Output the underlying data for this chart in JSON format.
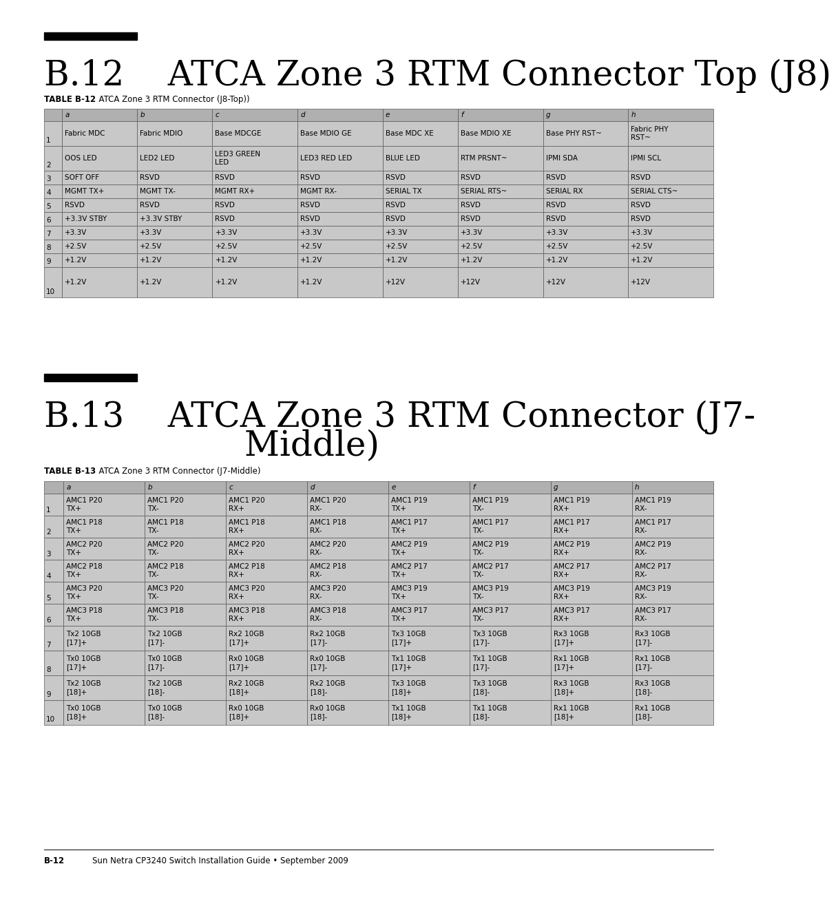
{
  "page_bg": "#ffffff",
  "title1": "B.12    ATCA Zone 3 RTM Connector Top (J8)",
  "table1_label": "TABLE B-12",
  "table1_caption": "  ATCA Zone 3 RTM Connector (J8-Top))",
  "table1_headers": [
    "",
    "a",
    "b",
    "c",
    "d",
    "e",
    "f",
    "g",
    "h"
  ],
  "table1_rows": [
    [
      "1",
      "Fabric MDC",
      "Fabric MDIO",
      "Base MDCGE",
      "Base MDIO GE",
      "Base MDC XE",
      "Base MDIO XE",
      "Base PHY RST~",
      "Fabric PHY\nRST~"
    ],
    [
      "2",
      "OOS LED",
      "LED2 LED",
      "LED3 GREEN\nLED",
      "LED3 RED LED",
      "BLUE LED",
      "RTM PRSNT~",
      "IPMI SDA",
      "IPMI SCL"
    ],
    [
      "3",
      "SOFT OFF",
      "RSVD",
      "RSVD",
      "RSVD",
      "RSVD",
      "RSVD",
      "RSVD",
      "RSVD"
    ],
    [
      "4",
      "MGMT TX+",
      "MGMT TX-",
      "MGMT RX+",
      "MGMT RX-",
      "SERIAL TX",
      "SERIAL RTS~",
      "SERIAL RX",
      "SERIAL CTS~"
    ],
    [
      "5",
      "RSVD",
      "RSVD",
      "RSVD",
      "RSVD",
      "RSVD",
      "RSVD",
      "RSVD",
      "RSVD"
    ],
    [
      "6",
      "+3.3V STBY",
      "+3.3V STBY",
      "RSVD",
      "RSVD",
      "RSVD",
      "RSVD",
      "RSVD",
      "RSVD"
    ],
    [
      "7",
      "+3.3V",
      "+3.3V",
      "+3.3V",
      "+3.3V",
      "+3.3V",
      "+3.3V",
      "+3.3V",
      "+3.3V"
    ],
    [
      "8",
      "+2.5V",
      "+2.5V",
      "+2.5V",
      "+2.5V",
      "+2.5V",
      "+2.5V",
      "+2.5V",
      "+2.5V"
    ],
    [
      "9",
      "+1.2V",
      "+1.2V",
      "+1.2V",
      "+1.2V",
      "+1.2V",
      "+1.2V",
      "+1.2V",
      "+1.2V"
    ],
    [
      "10",
      "+1.2V",
      "+1.2V",
      "+1.2V",
      "+1.2V",
      "+12V",
      "+12V",
      "+12V",
      "+12V"
    ]
  ],
  "title2_line1": "B.13    ATCA Zone 3 RTM Connector (J7-",
  "title2_line2": "         Middle)",
  "table2_label": "TABLE B-13",
  "table2_caption": "  ATCA Zone 3 RTM Connector (J7-Middle)",
  "table2_headers": [
    "",
    "a",
    "b",
    "c",
    "d",
    "e",
    "f",
    "g",
    "h"
  ],
  "table2_rows": [
    [
      "1",
      "AMC1 P20\nTX+",
      "AMC1 P20\nTX-",
      "AMC1 P20\nRX+",
      "AMC1 P20\nRX-",
      "AMC1 P19\nTX+",
      "AMC1 P19\nTX-",
      "AMC1 P19\nRX+",
      "AMC1 P19\nRX-"
    ],
    [
      "2",
      "AMC1 P18\nTX+",
      "AMC1 P18\nTX-",
      "AMC1 P18\nRX+",
      "AMC1 P18\nRX-",
      "AMC1 P17\nTX+",
      "AMC1 P17\nTX-",
      "AMC1 P17\nRX+",
      "AMC1 P17\nRX-"
    ],
    [
      "3",
      "AMC2 P20\nTX+",
      "AMC2 P20\nTX-",
      "AMC2 P20\nRX+",
      "AMC2 P20\nRX-",
      "AMC2 P19\nTX+",
      "AMC2 P19\nTX-",
      "AMC2 P19\nRX+",
      "AMC2 P19\nRX-"
    ],
    [
      "4",
      "AMC2 P18\nTX+",
      "AMC2 P18\nTX-",
      "AMC2 P18\nRX+",
      "AMC2 P18\nRX-",
      "AMC2 P17\nTX+",
      "AMC2 P17\nTX-",
      "AMC2 P17\nRX+",
      "AMC2 P17\nRX-"
    ],
    [
      "5",
      "AMC3 P20\nTX+",
      "AMC3 P20\nTX-",
      "AMC3 P20\nRX+",
      "AMC3 P20\nRX-",
      "AMC3 P19\nTX+",
      "AMC3 P19\nTX-",
      "AMC3 P19\nRX+",
      "AMC3 P19\nRX-"
    ],
    [
      "6",
      "AMC3 P18\nTX+",
      "AMC3 P18\nTX-",
      "AMC3 P18\nRX+",
      "AMC3 P18\nRX-",
      "AMC3 P17\nTX+",
      "AMC3 P17\nTX-",
      "AMC3 P17\nRX+",
      "AMC3 P17\nRX-"
    ],
    [
      "7",
      "Tx2 10GB\n[17]+",
      "Tx2 10GB\n[17]-",
      "Rx2 10GB\n[17]+",
      "Rx2 10GB\n[17]-",
      "Tx3 10GB\n[17]+",
      "Tx3 10GB\n[17]-",
      "Rx3 10GB\n[17]+",
      "Rx3 10GB\n[17]-"
    ],
    [
      "8",
      "Tx0 10GB\n[17]+",
      "Tx0 10GB\n[17]-",
      "Rx0 10GB\n[17]+",
      "Rx0 10GB\n[17]-",
      "Tx1 10GB\n[17]+",
      "Tx1 10GB\n[17]-",
      "Rx1 10GB\n[17]+",
      "Rx1 10GB\n[17]-"
    ],
    [
      "9",
      "Tx2 10GB\n[18]+",
      "Tx2 10GB\n[18]-",
      "Rx2 10GB\n[18]+",
      "Rx2 10GB\n[18]-",
      "Tx3 10GB\n[18]+",
      "Tx3 10GB\n[18]-",
      "Rx3 10GB\n[18]+",
      "Rx3 10GB\n[18]-"
    ],
    [
      "10",
      "Tx0 10GB\n[18]+",
      "Tx0 10GB\n[18]-",
      "Rx0 10GB\n[18]+",
      "Rx0 10GB\n[18]-",
      "Tx1 10GB\n[18]+",
      "Tx1 10GB\n[18]-",
      "Rx1 10GB\n[18]+",
      "Rx1 10GB\n[18]-"
    ]
  ],
  "footer_page": "B-12",
  "footer_text": "Sun Netra CP3240 Switch Installation Guide • September 2009",
  "col_bg_header": "#b0b0b0",
  "cell_bg": "#c8c8c8"
}
